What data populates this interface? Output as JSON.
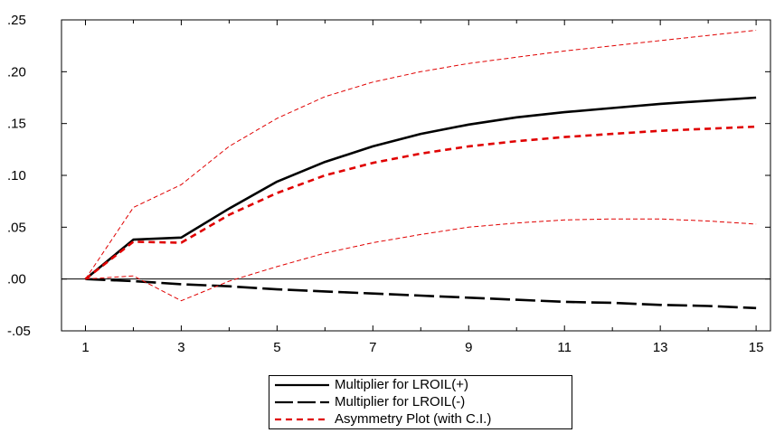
{
  "chart_data": {
    "type": "line",
    "title": "",
    "xlabel": "",
    "ylabel": "",
    "x": [
      1,
      2,
      3,
      4,
      5,
      6,
      7,
      8,
      9,
      10,
      11,
      12,
      13,
      14,
      15
    ],
    "xticks": [
      1,
      3,
      5,
      7,
      9,
      11,
      13,
      15
    ],
    "xlim": [
      0.5,
      15.3
    ],
    "ylim": [
      -0.05,
      0.25
    ],
    "yticks": [
      -0.05,
      0.0,
      0.05,
      0.1,
      0.15,
      0.2,
      0.25
    ],
    "ytick_labels": [
      "-.05",
      ".00",
      ".05",
      ".10",
      ".15",
      ".20",
      ".25"
    ],
    "grid": false,
    "zero_line": true,
    "series": [
      {
        "name": "Multiplier for LROIL(+)",
        "style": "solid",
        "color": "#000000",
        "values": [
          0.0,
          0.038,
          0.04,
          0.068,
          0.094,
          0.113,
          0.128,
          0.14,
          0.149,
          0.156,
          0.161,
          0.165,
          0.169,
          0.172,
          0.175
        ]
      },
      {
        "name": "Multiplier for LROIL(-)",
        "style": "long-dash",
        "color": "#000000",
        "values": [
          0.0,
          -0.002,
          -0.005,
          -0.007,
          -0.01,
          -0.012,
          -0.014,
          -0.016,
          -0.018,
          -0.02,
          -0.022,
          -0.023,
          -0.025,
          -0.026,
          -0.028
        ]
      },
      {
        "name": "Asymmetry Plot (with C.I.)",
        "style": "dash",
        "color": "#e00000",
        "values": [
          0.0,
          0.036,
          0.035,
          0.062,
          0.083,
          0.1,
          0.112,
          0.121,
          0.128,
          0.133,
          0.137,
          0.14,
          0.143,
          0.145,
          0.147
        ]
      },
      {
        "style": "thin-dash",
        "color": "#e00000",
        "values": [
          0.0,
          0.069,
          0.091,
          0.128,
          0.155,
          0.176,
          0.19,
          0.2,
          0.208,
          0.214,
          0.22,
          0.225,
          0.23,
          0.235,
          0.24
        ]
      },
      {
        "style": "thin-dash",
        "color": "#e00000",
        "values": [
          0.0,
          0.003,
          -0.021,
          -0.002,
          0.012,
          0.025,
          0.035,
          0.043,
          0.05,
          0.054,
          0.057,
          0.058,
          0.058,
          0.056,
          0.053
        ]
      }
    ],
    "legend": {
      "position": "bottom-center",
      "entries": [
        "Multiplier for LROIL(+)",
        "Multiplier for LROIL(-)",
        "Asymmetry Plot (with C.I.)"
      ]
    }
  }
}
